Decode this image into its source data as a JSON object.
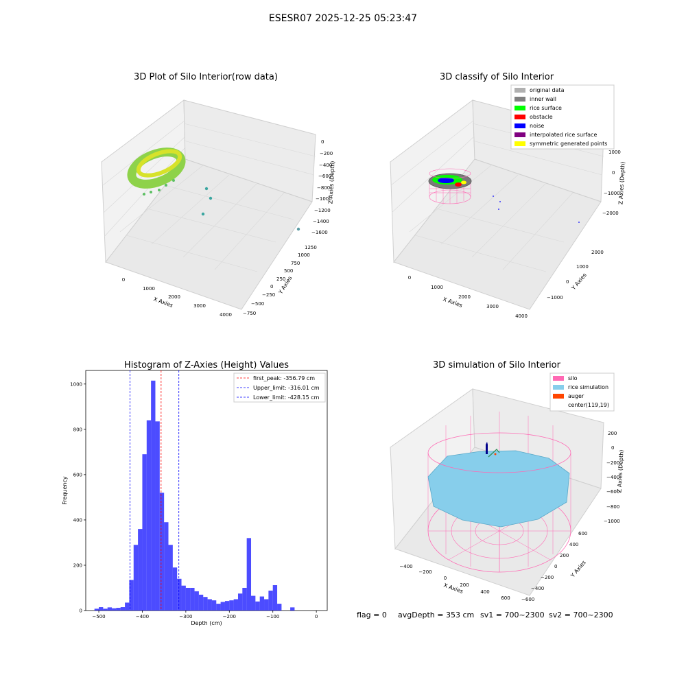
{
  "suptitle": "ESESR07 2025-12-25 05:23:47",
  "chart_data": [
    {
      "type": "scatter",
      "subtype": "3d",
      "title": "3D Plot of Silo Interior(row data)",
      "xlabel": "X Axies",
      "ylabel": "Y Axies",
      "zlabel": "Z Axies (Depth)",
      "xticks": [
        "0",
        "1000",
        "2000",
        "3000",
        "4000"
      ],
      "yticks": [
        "1250",
        "1000",
        "750",
        "500",
        "250",
        "0",
        "−250",
        "−500",
        "−750"
      ],
      "zticks": [
        "0",
        "−200",
        "−400",
        "−600",
        "−800",
        "−1000",
        "−1200",
        "−1400",
        "−1600"
      ],
      "colors": {
        "points": "#7fd34e",
        "outliers": "#3aa6a0"
      }
    },
    {
      "type": "scatter",
      "subtype": "3d",
      "title": "3D classify of Silo Interior",
      "xlabel": "X Axies",
      "ylabel": "Y Axies",
      "zlabel": "Z Axies (Depth)",
      "xticks": [
        "0",
        "1000",
        "2000",
        "3000",
        "4000"
      ],
      "yticks": [
        "2000",
        "1000",
        "0",
        "−1000"
      ],
      "zticks": [
        "1000",
        "0",
        "−1000",
        "−2000"
      ],
      "legend_position": "top-right",
      "legend": [
        {
          "label": "original data",
          "color": "#b0b0b0"
        },
        {
          "label": "inner wall",
          "color": "#808080"
        },
        {
          "label": "rice surface",
          "color": "#00ff00"
        },
        {
          "label": "obstacle",
          "color": "#ff0000"
        },
        {
          "label": "noise",
          "color": "#0000ff"
        },
        {
          "label": "interpolated rice surface",
          "color": "#800080"
        },
        {
          "label": "symmetric generated points",
          "color": "#ffff00"
        }
      ]
    },
    {
      "type": "bar",
      "subtype": "histogram",
      "title": "Histogram of Z-Axies (Height) Values",
      "xlabel": "Depth (cm)",
      "ylabel": "Frequency",
      "xlim": [
        -530,
        25
      ],
      "ylim": [
        0,
        1060
      ],
      "xticks": [
        -500,
        -400,
        -300,
        -200,
        -100,
        0
      ],
      "xtick_labels": [
        "−500",
        "−400",
        "−300",
        "−200",
        "−100",
        "0"
      ],
      "yticks": [
        0,
        200,
        400,
        600,
        800,
        1000
      ],
      "bin_width": 10,
      "bin_starts": [
        -510,
        -500,
        -490,
        -480,
        -470,
        -460,
        -450,
        -440,
        -430,
        -420,
        -410,
        -400,
        -390,
        -380,
        -370,
        -360,
        -350,
        -340,
        -330,
        -320,
        -310,
        -300,
        -290,
        -280,
        -270,
        -260,
        -250,
        -240,
        -230,
        -220,
        -210,
        -200,
        -190,
        -180,
        -170,
        -160,
        -150,
        -140,
        -130,
        -120,
        -110,
        -100,
        -90,
        -80,
        -70,
        -60,
        -50,
        -40,
        -30,
        -20,
        -10,
        0
      ],
      "values": [
        8,
        15,
        8,
        14,
        10,
        12,
        15,
        35,
        135,
        290,
        360,
        690,
        840,
        1015,
        835,
        520,
        390,
        290,
        190,
        140,
        110,
        100,
        100,
        85,
        70,
        60,
        50,
        45,
        30,
        38,
        42,
        45,
        50,
        75,
        100,
        320,
        65,
        40,
        62,
        50,
        88,
        112,
        30,
        0,
        0,
        14,
        0,
        0,
        0,
        0,
        0,
        0
      ],
      "bar_color": "#0000ff",
      "vlines": [
        {
          "label": "first_peak: -356.79 cm",
          "x": -356.79,
          "color": "#ff0000"
        },
        {
          "label": "Upper_limit: -316.01 cm",
          "x": -316.01,
          "color": "#0000ff"
        },
        {
          "label": "Lower_limit: -428.15 cm",
          "x": -428.15,
          "color": "#0000ff"
        }
      ],
      "legend_position": "top-right"
    },
    {
      "type": "area",
      "subtype": "3d-surface",
      "title": "3D simulation of Silo Interior",
      "xlabel": "X Axies",
      "ylabel": "Y Axies",
      "zlabel": "Z Axies (Depth)",
      "xticks": [
        "−400",
        "−200",
        "0",
        "200",
        "400",
        "600"
      ],
      "yticks": [
        "600",
        "400",
        "200",
        "0",
        "−200",
        "−400",
        "−600"
      ],
      "zticks": [
        "200",
        "0",
        "−200",
        "−400",
        "−600",
        "−800",
        "−1000"
      ],
      "legend_position": "top-right",
      "legend": [
        {
          "label": "silo",
          "color": "#ff69b4"
        },
        {
          "label": "rice simulation",
          "color": "#87ceeb"
        },
        {
          "label": "auger",
          "color": "#ff4500"
        },
        {
          "label": "center(119,19)",
          "color": ""
        }
      ]
    }
  ],
  "footer": {
    "flag": "flag = 0",
    "avg": "avgDepth = 353 cm",
    "sv1": "sv1 = 700~2300",
    "sv2": "sv2 = 700~2300"
  }
}
